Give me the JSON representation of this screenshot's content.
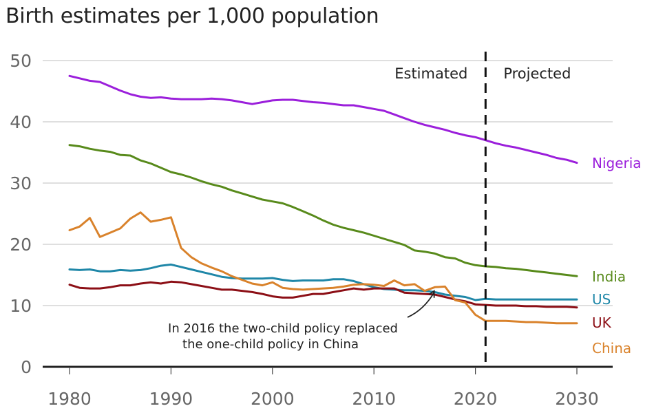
{
  "chart_data": {
    "type": "line",
    "title": "Birth estimates per 1,000 population",
    "xlabel": "",
    "ylabel": "",
    "xlim": [
      1980,
      2030
    ],
    "ylim": [
      0,
      50
    ],
    "x_ticks": [
      1980,
      1990,
      2000,
      2010,
      2020,
      2030
    ],
    "y_ticks": [
      0,
      10,
      20,
      30,
      40,
      50
    ],
    "grid": "horizontal",
    "divider": {
      "x": 2021,
      "left_label": "Estimated",
      "right_label": "Projected",
      "style": "dashed"
    },
    "annotation": {
      "lines": [
        "In 2016 the two-child policy replaced",
        "the one-child policy in China"
      ],
      "points_to": {
        "x": 2016,
        "y": 12.5,
        "series": "China"
      }
    },
    "series": [
      {
        "name": "Nigeria",
        "color": "#9b1fdb",
        "x": [
          1980,
          1981,
          1982,
          1983,
          1984,
          1985,
          1986,
          1987,
          1988,
          1989,
          1990,
          1991,
          1992,
          1993,
          1994,
          1995,
          1996,
          1997,
          1998,
          1999,
          2000,
          2001,
          2002,
          2003,
          2004,
          2005,
          2006,
          2007,
          2008,
          2009,
          2010,
          2011,
          2012,
          2013,
          2014,
          2015,
          2016,
          2017,
          2018,
          2019,
          2020,
          2021,
          2022,
          2023,
          2024,
          2025,
          2026,
          2027,
          2028,
          2029,
          2030
        ],
        "values": [
          47.5,
          47.1,
          46.7,
          46.5,
          45.8,
          45.1,
          44.5,
          44.1,
          43.9,
          44.0,
          43.8,
          43.7,
          43.7,
          43.7,
          43.8,
          43.7,
          43.5,
          43.2,
          42.9,
          43.2,
          43.5,
          43.6,
          43.6,
          43.4,
          43.2,
          43.1,
          42.9,
          42.7,
          42.7,
          42.4,
          42.1,
          41.8,
          41.2,
          40.6,
          40.0,
          39.5,
          39.1,
          38.7,
          38.2,
          37.8,
          37.5,
          37.0,
          36.5,
          36.1,
          35.8,
          35.4,
          35.0,
          34.6,
          34.1,
          33.8,
          33.3
        ]
      },
      {
        "name": "India",
        "color": "#588a1b",
        "x": [
          1980,
          1981,
          1982,
          1983,
          1984,
          1985,
          1986,
          1987,
          1988,
          1989,
          1990,
          1991,
          1992,
          1993,
          1994,
          1995,
          1996,
          1997,
          1998,
          1999,
          2000,
          2001,
          2002,
          2003,
          2004,
          2005,
          2006,
          2007,
          2008,
          2009,
          2010,
          2011,
          2012,
          2013,
          2014,
          2015,
          2016,
          2017,
          2018,
          2019,
          2020,
          2021,
          2022,
          2023,
          2024,
          2025,
          2026,
          2027,
          2028,
          2029,
          2030
        ],
        "values": [
          36.2,
          36.0,
          35.6,
          35.3,
          35.1,
          34.6,
          34.5,
          33.7,
          33.2,
          32.5,
          31.8,
          31.4,
          30.9,
          30.3,
          29.8,
          29.4,
          28.8,
          28.3,
          27.8,
          27.3,
          27.0,
          26.7,
          26.1,
          25.4,
          24.7,
          23.9,
          23.2,
          22.7,
          22.3,
          21.9,
          21.4,
          20.9,
          20.4,
          19.9,
          19.0,
          18.8,
          18.5,
          17.9,
          17.7,
          17.0,
          16.6,
          16.4,
          16.3,
          16.1,
          16.0,
          15.8,
          15.6,
          15.4,
          15.2,
          15.0,
          14.8
        ]
      },
      {
        "name": "US",
        "color": "#1f87a8",
        "x": [
          1980,
          1981,
          1982,
          1983,
          1984,
          1985,
          1986,
          1987,
          1988,
          1989,
          1990,
          1991,
          1992,
          1993,
          1994,
          1995,
          1996,
          1997,
          1998,
          1999,
          2000,
          2001,
          2002,
          2003,
          2004,
          2005,
          2006,
          2007,
          2008,
          2009,
          2010,
          2011,
          2012,
          2013,
          2014,
          2015,
          2016,
          2017,
          2018,
          2019,
          2020,
          2021,
          2022,
          2023,
          2024,
          2025,
          2026,
          2027,
          2028,
          2029,
          2030
        ],
        "values": [
          15.9,
          15.8,
          15.9,
          15.6,
          15.6,
          15.8,
          15.7,
          15.8,
          16.1,
          16.5,
          16.7,
          16.3,
          15.9,
          15.5,
          15.1,
          14.7,
          14.5,
          14.4,
          14.4,
          14.4,
          14.5,
          14.2,
          14.0,
          14.1,
          14.1,
          14.1,
          14.3,
          14.3,
          14.0,
          13.5,
          13.0,
          12.7,
          12.6,
          12.5,
          12.5,
          12.4,
          12.2,
          11.8,
          11.6,
          11.4,
          10.9,
          11.1,
          11.0,
          11.0,
          11.0,
          11.0,
          11.0,
          11.0,
          11.0,
          11.0,
          11.0
        ]
      },
      {
        "name": "UK",
        "color": "#8c0f16",
        "x": [
          1980,
          1981,
          1982,
          1983,
          1984,
          1985,
          1986,
          1987,
          1988,
          1989,
          1990,
          1991,
          1992,
          1993,
          1994,
          1995,
          1996,
          1997,
          1998,
          1999,
          2000,
          2001,
          2002,
          2003,
          2004,
          2005,
          2006,
          2007,
          2008,
          2009,
          2010,
          2011,
          2012,
          2013,
          2014,
          2015,
          2016,
          2017,
          2018,
          2019,
          2020,
          2021,
          2022,
          2023,
          2024,
          2025,
          2026,
          2027,
          2028,
          2029,
          2030
        ],
        "values": [
          13.4,
          12.9,
          12.8,
          12.8,
          13.0,
          13.3,
          13.3,
          13.6,
          13.8,
          13.6,
          13.9,
          13.8,
          13.5,
          13.2,
          12.9,
          12.6,
          12.6,
          12.4,
          12.2,
          11.9,
          11.5,
          11.3,
          11.3,
          11.6,
          11.9,
          11.9,
          12.2,
          12.5,
          12.8,
          12.6,
          12.8,
          12.8,
          12.8,
          12.1,
          12.0,
          11.9,
          11.8,
          11.4,
          11.0,
          10.7,
          10.2,
          10.1,
          10.0,
          10.0,
          10.0,
          9.9,
          9.9,
          9.8,
          9.8,
          9.8,
          9.7
        ]
      },
      {
        "name": "China",
        "color": "#d9822b",
        "x": [
          1980,
          1981,
          1982,
          1983,
          1984,
          1985,
          1986,
          1987,
          1988,
          1989,
          1990,
          1991,
          1992,
          1993,
          1994,
          1995,
          1996,
          1997,
          1998,
          1999,
          2000,
          2001,
          2002,
          2003,
          2004,
          2005,
          2006,
          2007,
          2008,
          2009,
          2010,
          2011,
          2012,
          2013,
          2014,
          2015,
          2016,
          2017,
          2018,
          2019,
          2020,
          2021,
          2022,
          2023,
          2024,
          2025,
          2026,
          2027,
          2028,
          2029,
          2030
        ],
        "values": [
          22.3,
          22.9,
          24.3,
          21.2,
          21.9,
          22.6,
          24.2,
          25.2,
          23.7,
          24.0,
          24.4,
          19.4,
          17.9,
          16.9,
          16.2,
          15.6,
          14.8,
          14.2,
          13.6,
          13.3,
          13.8,
          12.9,
          12.7,
          12.6,
          12.7,
          12.8,
          12.9,
          13.1,
          13.4,
          13.5,
          13.4,
          13.2,
          14.1,
          13.3,
          13.5,
          12.4,
          13.0,
          13.1,
          10.9,
          10.5,
          8.5,
          7.5,
          7.5,
          7.5,
          7.4,
          7.3,
          7.3,
          7.2,
          7.1,
          7.1,
          7.1
        ]
      }
    ]
  }
}
